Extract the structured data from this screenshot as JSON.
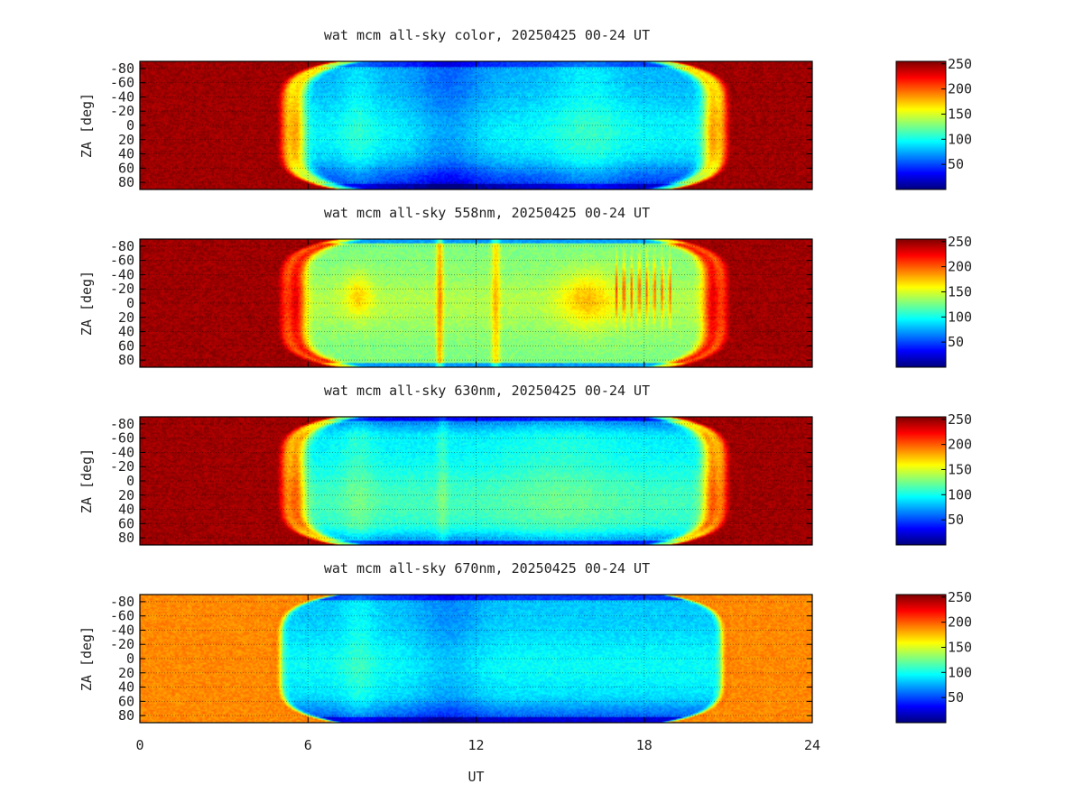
{
  "chart_data": {
    "type": "heatmap",
    "panels": [
      {
        "title": "wat mcm all-sky color, 20250425 00-24 UT",
        "profile": "color",
        "colorbar_ticks": [
          "250",
          "200",
          "150",
          "100",
          "50"
        ]
      },
      {
        "title": "wat mcm all-sky 558nm, 20250425 00-24 UT",
        "profile": "558",
        "colorbar_ticks": [
          "250",
          "200",
          "150",
          "100",
          "50"
        ]
      },
      {
        "title": "wat mcm all-sky 630nm, 20250425 00-24 UT",
        "profile": "630",
        "colorbar_ticks": [
          "250",
          "200",
          "150",
          "100",
          "50"
        ]
      },
      {
        "title": "wat mcm all-sky 670nm, 20250425 00-24 UT",
        "profile": "670",
        "colorbar_ticks": [
          "250",
          "200",
          "150",
          "100",
          "50"
        ]
      }
    ],
    "x_axis": {
      "label": "UT",
      "range": [
        0,
        24
      ],
      "ticks": [
        "0",
        "6",
        "12",
        "18",
        "24"
      ]
    },
    "y_axis": {
      "label": "ZA [deg]",
      "range": [
        -90,
        90
      ],
      "ticks": [
        "-80",
        "-60",
        "-40",
        "-20",
        "0",
        "20",
        "40",
        "60",
        "80"
      ]
    },
    "color_scale": {
      "colormap": "jet",
      "range": [
        0,
        255
      ]
    },
    "grid": "on"
  }
}
